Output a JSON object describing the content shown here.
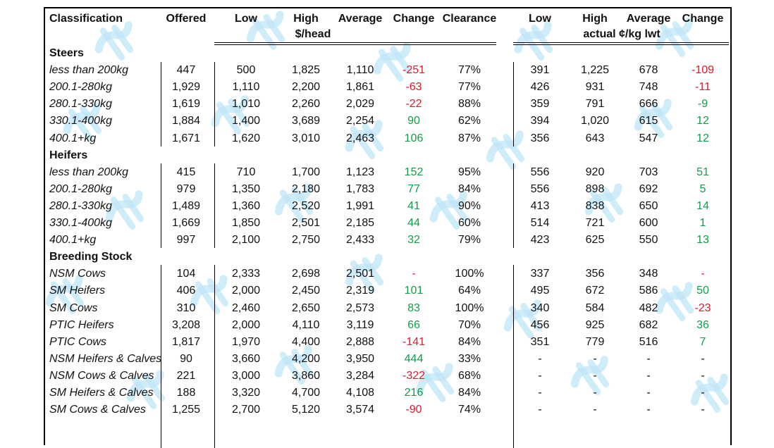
{
  "header": {
    "classification": "Classification",
    "offered": "Offered",
    "low": "Low",
    "high": "High",
    "average": "Average",
    "change": "Change",
    "clearance": "Clearance",
    "unit_head": "$/head",
    "low2": "Low",
    "high2": "High",
    "average2": "Average",
    "change2": "Change",
    "unit_kg": "actual ¢/kg lwt"
  },
  "rows": [
    {
      "type": "section",
      "label": "Steers"
    },
    {
      "type": "data",
      "label": "less than 200kg",
      "offered": "447",
      "low": "500",
      "high": "1,825",
      "avg": "1,110",
      "chg": "-251",
      "chg_color": "red",
      "clear": "77%",
      "low2": "391",
      "high2": "1,225",
      "avg2": "678",
      "chg2": "-109",
      "chg2_color": "red"
    },
    {
      "type": "data",
      "label": "200.1-280kg",
      "offered": "1,929",
      "low": "1,110",
      "high": "2,200",
      "avg": "1,861",
      "chg": "-63",
      "chg_color": "red",
      "clear": "77%",
      "low2": "426",
      "high2": "931",
      "avg2": "748",
      "chg2": "-11",
      "chg2_color": "red"
    },
    {
      "type": "data",
      "label": "280.1-330kg",
      "offered": "1,619",
      "low": "1,010",
      "high": "2,260",
      "avg": "2,029",
      "chg": "-22",
      "chg_color": "red",
      "clear": "88%",
      "low2": "359",
      "high2": "791",
      "avg2": "666",
      "chg2": "-9",
      "chg2_color": "green"
    },
    {
      "type": "data",
      "label": "330.1-400kg",
      "offered": "1,884",
      "low": "1,400",
      "high": "3,689",
      "avg": "2,254",
      "chg": "90",
      "chg_color": "green",
      "clear": "62%",
      "low2": "394",
      "high2": "1,020",
      "avg2": "615",
      "chg2": "12",
      "chg2_color": "green"
    },
    {
      "type": "data",
      "label": "400.1+kg",
      "offered": "1,671",
      "low": "1,620",
      "high": "3,010",
      "avg": "2,463",
      "chg": "106",
      "chg_color": "green",
      "clear": "87%",
      "low2": "356",
      "high2": "643",
      "avg2": "547",
      "chg2": "12",
      "chg2_color": "green"
    },
    {
      "type": "section",
      "label": "Heifers"
    },
    {
      "type": "data",
      "label": "less than 200kg",
      "offered": "415",
      "low": "710",
      "high": "1,700",
      "avg": "1,123",
      "chg": "152",
      "chg_color": "green",
      "clear": "95%",
      "low2": "556",
      "high2": "920",
      "avg2": "703",
      "chg2": "51",
      "chg2_color": "green"
    },
    {
      "type": "data",
      "label": "200.1-280kg",
      "offered": "979",
      "low": "1,350",
      "high": "2,180",
      "avg": "1,783",
      "chg": "77",
      "chg_color": "green",
      "clear": "84%",
      "low2": "556",
      "high2": "898",
      "avg2": "692",
      "chg2": "5",
      "chg2_color": "green"
    },
    {
      "type": "data",
      "label": "280.1-330kg",
      "offered": "1,489",
      "low": "1,360",
      "high": "2,520",
      "avg": "1,991",
      "chg": "41",
      "chg_color": "green",
      "clear": "90%",
      "low2": "413",
      "high2": "838",
      "avg2": "650",
      "chg2": "14",
      "chg2_color": "green"
    },
    {
      "type": "data",
      "label": "330.1-400kg",
      "offered": "1,669",
      "low": "1,850",
      "high": "2,501",
      "avg": "2,185",
      "chg": "44",
      "chg_color": "green",
      "clear": "60%",
      "low2": "514",
      "high2": "721",
      "avg2": "600",
      "chg2": "1",
      "chg2_color": "green"
    },
    {
      "type": "data",
      "label": "400.1+kg",
      "offered": "997",
      "low": "2,100",
      "high": "2,750",
      "avg": "2,433",
      "chg": "32",
      "chg_color": "green",
      "clear": "79%",
      "low2": "423",
      "high2": "625",
      "avg2": "550",
      "chg2": "13",
      "chg2_color": "green"
    },
    {
      "type": "section",
      "label": "Breeding Stock"
    },
    {
      "type": "data",
      "label": "NSM Cows",
      "offered": "104",
      "low": "2,333",
      "high": "2,698",
      "avg": "2,501",
      "chg": "-",
      "chg_color": "red",
      "clear": "100%",
      "low2": "337",
      "high2": "356",
      "avg2": "348",
      "chg2": "-",
      "chg2_color": "red"
    },
    {
      "type": "data",
      "label": "SM Heifers",
      "offered": "406",
      "low": "2,000",
      "high": "2,450",
      "avg": "2,319",
      "chg": "101",
      "chg_color": "green",
      "clear": "64%",
      "low2": "495",
      "high2": "672",
      "avg2": "586",
      "chg2": "50",
      "chg2_color": "green"
    },
    {
      "type": "data",
      "label": "SM Cows",
      "offered": "310",
      "low": "2,460",
      "high": "2,650",
      "avg": "2,573",
      "chg": "83",
      "chg_color": "green",
      "clear": "100%",
      "low2": "340",
      "high2": "584",
      "avg2": "482",
      "chg2": "-23",
      "chg2_color": "red"
    },
    {
      "type": "data",
      "label": "PTIC Heifers",
      "offered": "3,208",
      "low": "2,000",
      "high": "4,110",
      "avg": "3,119",
      "chg": "66",
      "chg_color": "green",
      "clear": "70%",
      "low2": "456",
      "high2": "925",
      "avg2": "682",
      "chg2": "36",
      "chg2_color": "green"
    },
    {
      "type": "data",
      "label": "PTIC Cows",
      "offered": "1,817",
      "low": "1,970",
      "high": "4,400",
      "avg": "2,888",
      "chg": "-141",
      "chg_color": "red",
      "clear": "84%",
      "low2": "351",
      "high2": "779",
      "avg2": "516",
      "chg2": "7",
      "chg2_color": "green"
    },
    {
      "type": "data",
      "label": "NSM Heifers & Calves",
      "offered": "90",
      "low": "3,660",
      "high": "4,200",
      "avg": "3,950",
      "chg": "444",
      "chg_color": "green",
      "clear": "33%",
      "low2": "-",
      "high2": "-",
      "avg2": "-",
      "chg2": "-",
      "chg2_color": "black"
    },
    {
      "type": "data",
      "label": "NSM Cows & Calves",
      "offered": "221",
      "low": "3,000",
      "high": "3,860",
      "avg": "3,284",
      "chg": "-322",
      "chg_color": "red",
      "clear": "68%",
      "low2": "-",
      "high2": "-",
      "avg2": "-",
      "chg2": "-",
      "chg2_color": "black"
    },
    {
      "type": "data",
      "label": "SM Heifers & Calves",
      "offered": "188",
      "low": "3,320",
      "high": "4,700",
      "avg": "4,108",
      "chg": "216",
      "chg_color": "green",
      "clear": "84%",
      "low2": "-",
      "high2": "-",
      "avg2": "-",
      "chg2": "-",
      "chg2_color": "black"
    },
    {
      "type": "data",
      "label": "SM Cows & Calves",
      "offered": "1,255",
      "low": "2,700",
      "high": "5,120",
      "avg": "3,574",
      "chg": "-90",
      "chg_color": "red",
      "clear": "74%",
      "low2": "-",
      "high2": "-",
      "avg2": "-",
      "chg2": "-",
      "chg2_color": "black"
    }
  ]
}
